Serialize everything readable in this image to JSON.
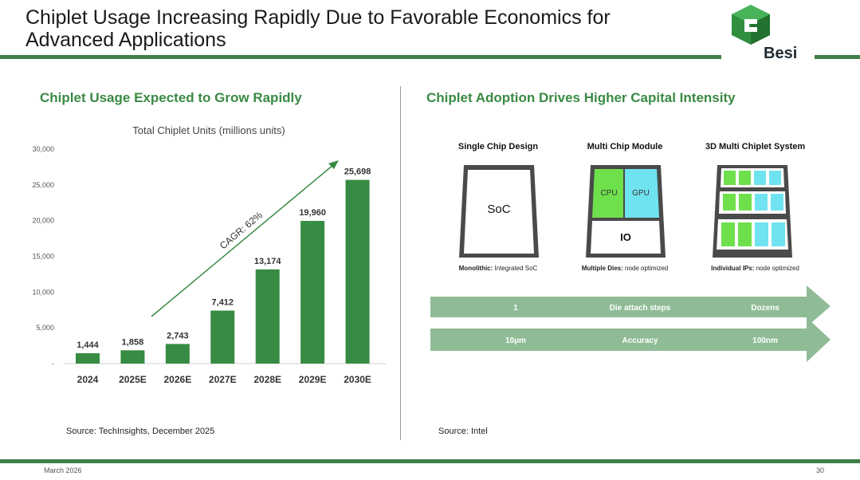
{
  "header": {
    "title_line1": "Chiplet Usage Increasing Rapidly Due to Favorable Economics for",
    "title_line2": "Advanced Applications",
    "logo_text": "Besi",
    "logo_icon": "besi-hexagon-logo"
  },
  "colors": {
    "brand_green": "#3a8a45",
    "bar_green": "#378b42",
    "arrow_green": "#8fbc96",
    "cpu_green": "#6ee04c",
    "gpu_cyan": "#6fe3f0"
  },
  "left": {
    "section_title": "Chiplet Usage Expected to Grow Rapidly",
    "source": "Source: TechInsights, December 2025"
  },
  "chart_data": {
    "type": "bar",
    "title": "Total Chiplet Units (millions units)",
    "categories": [
      "2024",
      "2025E",
      "2026E",
      "2027E",
      "2028E",
      "2029E",
      "2030E"
    ],
    "values": [
      1444,
      1858,
      2743,
      7412,
      13174,
      19960,
      25698
    ],
    "value_labels": [
      "1,444",
      "1,858",
      "2,743",
      "7,412",
      "13,174",
      "19,960",
      "25,698"
    ],
    "y_ticks": [
      0,
      5000,
      10000,
      15000,
      20000,
      25000,
      30000
    ],
    "y_tick_labels": [
      "-",
      "5,000",
      "10,000",
      "15,000",
      "20,000",
      "25,000",
      "30,000"
    ],
    "ylim": [
      0,
      30000
    ],
    "annotation": "CAGR: 62%",
    "xlabel": "",
    "ylabel": ""
  },
  "right": {
    "section_title": "Chiplet Adoption Drives Higher Capital Intensity",
    "source": "Source: Intel",
    "columns": [
      {
        "heading": "Single Chip Design",
        "caption_bold": "Monolithic:",
        "caption_rest": " Integrated SoC",
        "label": "SoC"
      },
      {
        "heading": "Multi Chip Module",
        "caption_bold": "Multiple Dies:",
        "caption_rest": " node optimized",
        "cpu": "CPU",
        "gpu": "GPU",
        "io": "IO"
      },
      {
        "heading": "3D Multi Chiplet System",
        "caption_bold": "Individual IPs:",
        "caption_rest": " node optimized"
      }
    ],
    "arrows": [
      {
        "left": "1",
        "middle": "Die attach steps",
        "right": "Dozens"
      },
      {
        "left": "10µm",
        "middle": "Accuracy",
        "right": "100nm"
      }
    ]
  },
  "footer": {
    "date": "March 2026",
    "page": "30"
  }
}
